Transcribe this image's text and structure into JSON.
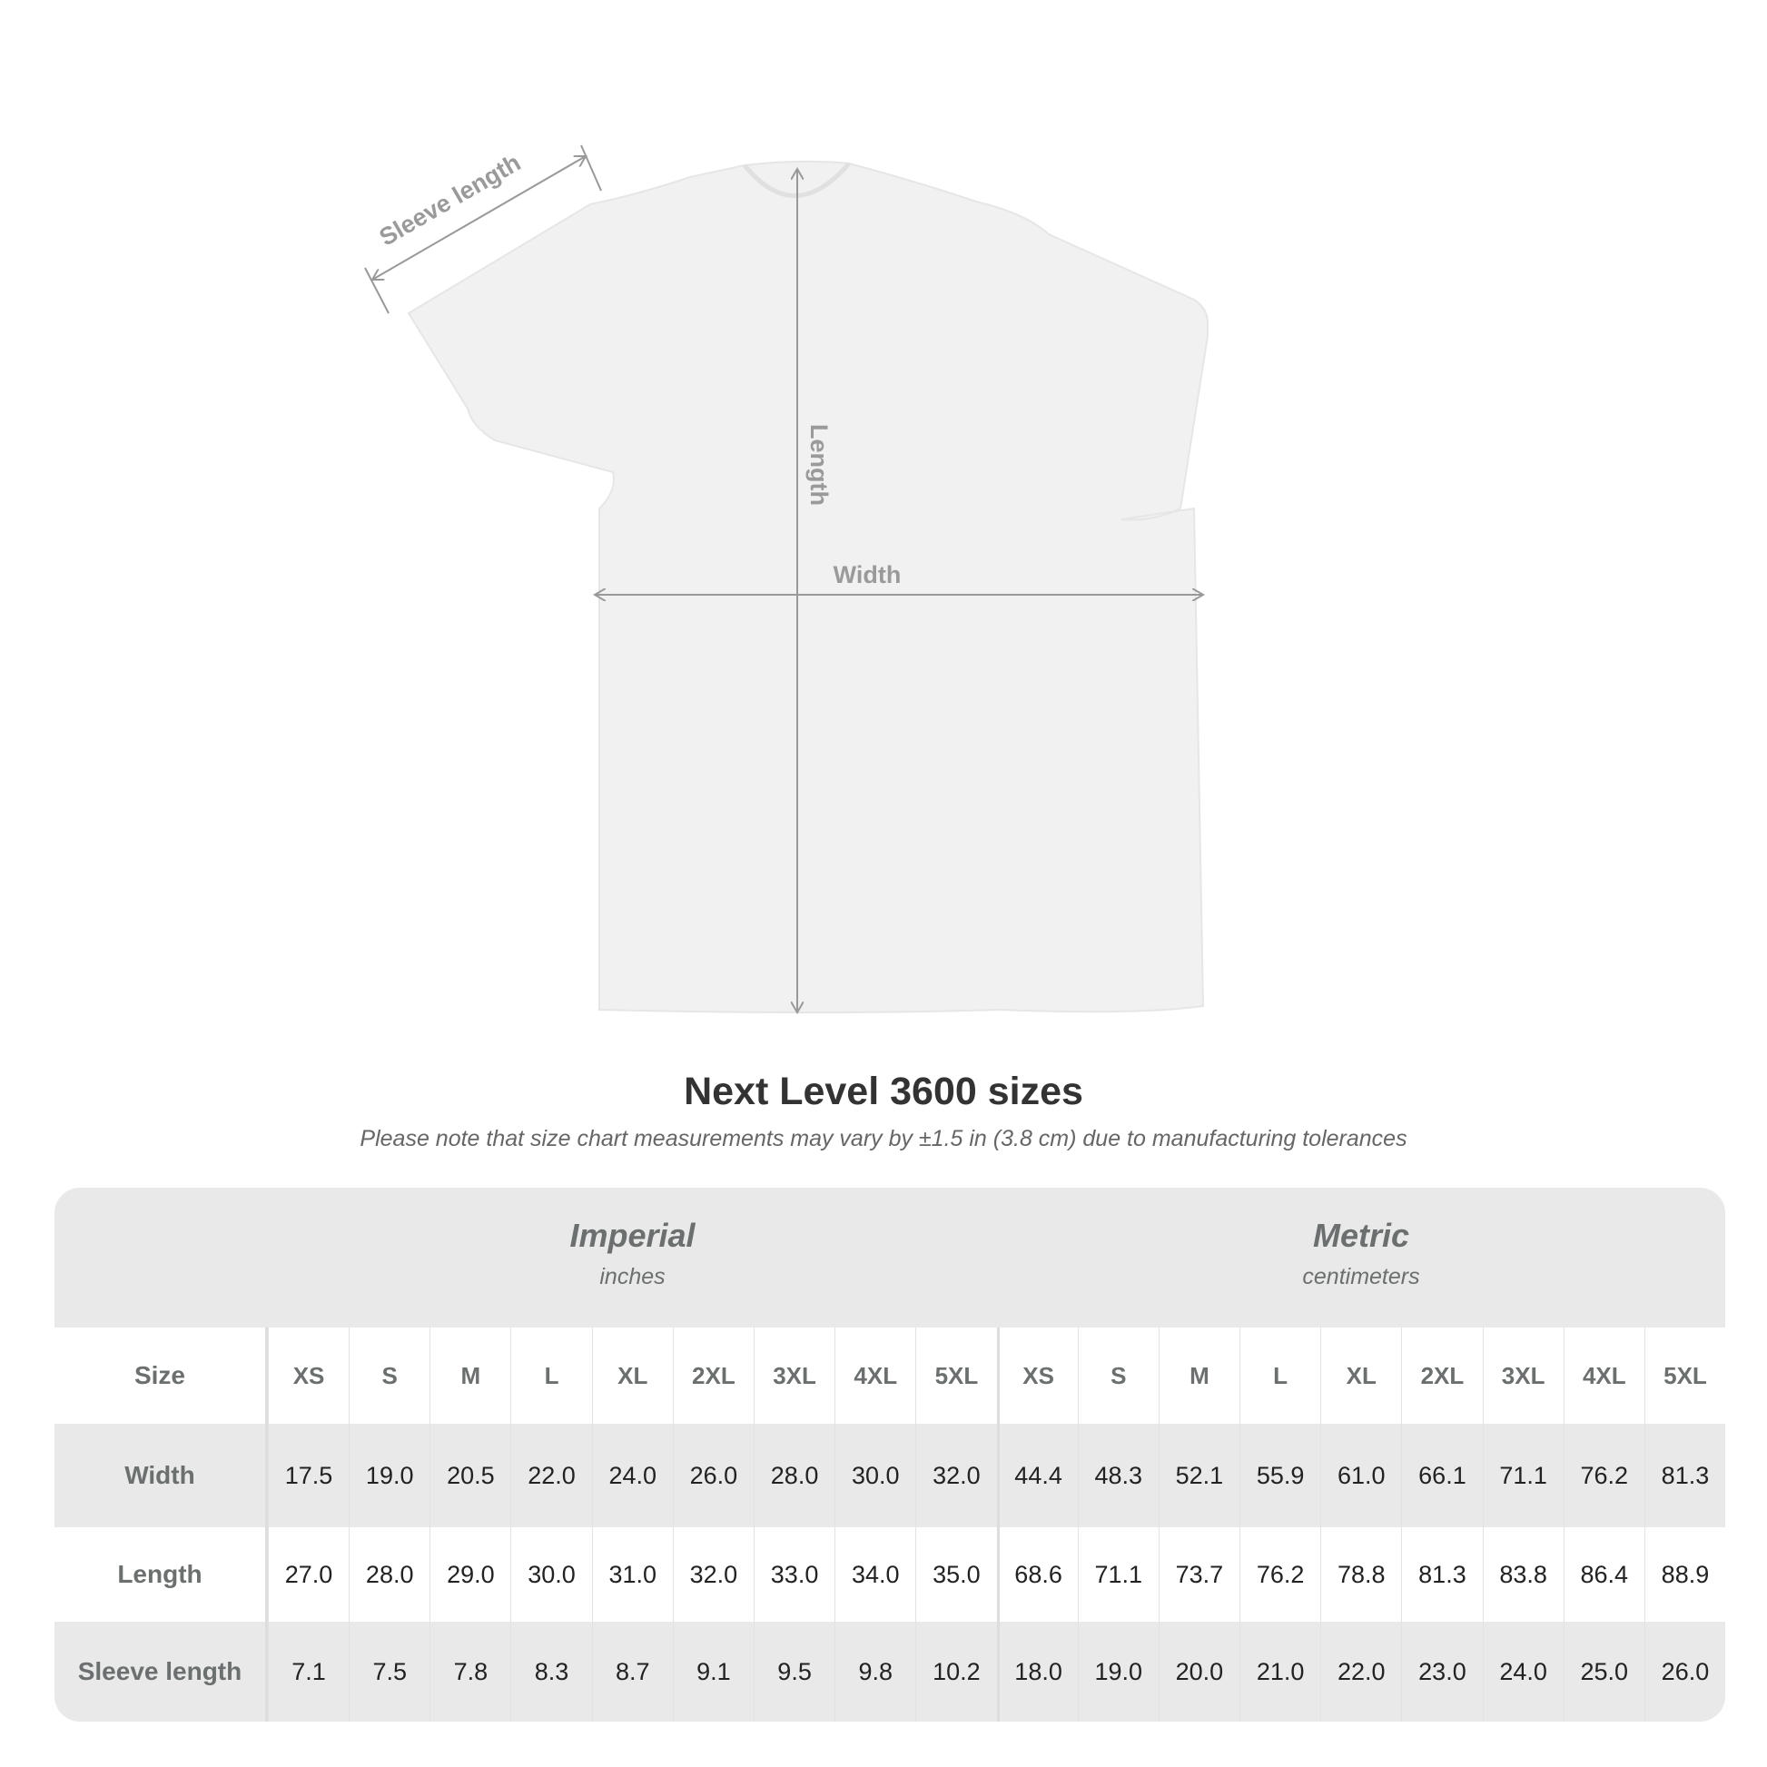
{
  "diagram": {
    "labels": {
      "sleeve": "Sleeve length",
      "length": "Length",
      "width": "Width"
    }
  },
  "title": "Next Level 3600 sizes",
  "note": "Please note that size chart measurements may vary by ±1.5 in (3.8 cm) due to manufacturing tolerances",
  "table": {
    "imperial": {
      "title": "Imperial",
      "unit": "inches"
    },
    "metric": {
      "title": "Metric",
      "unit": "centimeters"
    },
    "size_label": "Size",
    "sizes": [
      "XS",
      "S",
      "M",
      "L",
      "XL",
      "2XL",
      "3XL",
      "4XL",
      "5XL"
    ],
    "rows": [
      {
        "label": "Width",
        "imperial": [
          "17.5",
          "19.0",
          "20.5",
          "22.0",
          "24.0",
          "26.0",
          "28.0",
          "30.0",
          "32.0"
        ],
        "metric": [
          "44.4",
          "48.3",
          "52.1",
          "55.9",
          "61.0",
          "66.1",
          "71.1",
          "76.2",
          "81.3"
        ]
      },
      {
        "label": "Length",
        "imperial": [
          "27.0",
          "28.0",
          "29.0",
          "30.0",
          "31.0",
          "32.0",
          "33.0",
          "34.0",
          "35.0"
        ],
        "metric": [
          "68.6",
          "71.1",
          "73.7",
          "76.2",
          "78.8",
          "81.3",
          "83.8",
          "86.4",
          "88.9"
        ]
      },
      {
        "label": "Sleeve length",
        "imperial": [
          "7.1",
          "7.5",
          "7.8",
          "8.3",
          "8.7",
          "9.1",
          "9.5",
          "9.8",
          "10.2"
        ],
        "metric": [
          "18.0",
          "19.0",
          "20.0",
          "21.0",
          "22.0",
          "23.0",
          "24.0",
          "25.0",
          "26.0"
        ]
      }
    ]
  }
}
